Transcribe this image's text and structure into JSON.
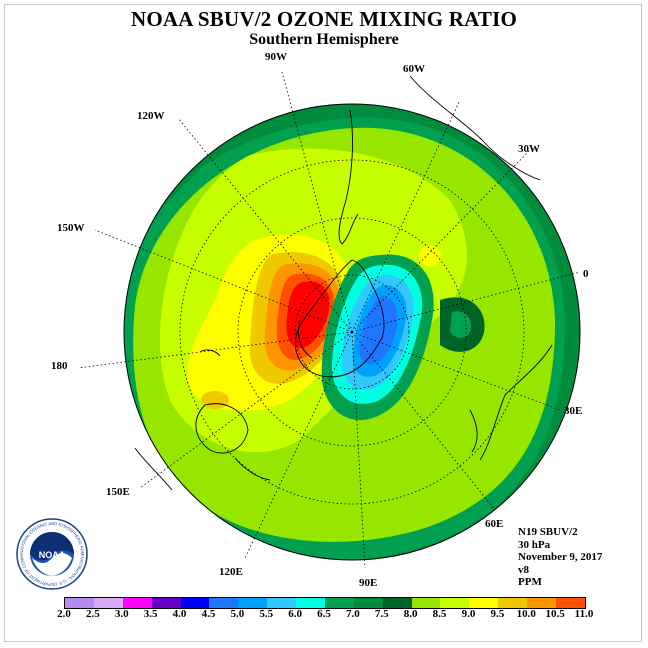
{
  "title": "NOAA SBUV/2 OZONE MIXING RATIO",
  "subtitle": "Southern Hemisphere",
  "longitude_labels": {
    "lon_90w": "90W",
    "lon_60w": "60W",
    "lon_30w": "30W",
    "lon_0": "0",
    "lon_30e": "30E",
    "lon_60e": "60E",
    "lon_90e": "90E",
    "lon_120e": "120E",
    "lon_150e": "150E",
    "lon_180": "180",
    "lon_150w": "150W",
    "lon_120w": "120W"
  },
  "info": {
    "instrument": "N19 SBUV/2",
    "level": "30 hPa",
    "date": "November 9, 2017",
    "version": "v8",
    "units": "PPM"
  },
  "colorbar": {
    "ticks": [
      "2.0",
      "2.5",
      "3.0",
      "3.5",
      "4.0",
      "4.5",
      "5.0",
      "5.5",
      "6.0",
      "6.5",
      "7.0",
      "7.5",
      "8.0",
      "8.5",
      "9.0",
      "9.5",
      "10.0",
      "10.5",
      "11.0"
    ],
    "colors": [
      "#b48cf0",
      "#d7a8f5",
      "#ff00ff",
      "#6000c8",
      "#0000ff",
      "#1e78ff",
      "#00a0ff",
      "#30c8ff",
      "#00ffe0",
      "#00a050",
      "#008c3c",
      "#006428",
      "#96e600",
      "#c8ff00",
      "#ffff00",
      "#f0c800",
      "#ff9600",
      "#ff5000",
      "#ff0000",
      "#8b4513"
    ]
  },
  "logo": {
    "center_text": "NOAA",
    "ring_text": "NATIONAL OCEANIC AND ATMOSPHERIC ADMINISTRATION · U.S. DEPARTMENT OF COMMERCE"
  }
}
